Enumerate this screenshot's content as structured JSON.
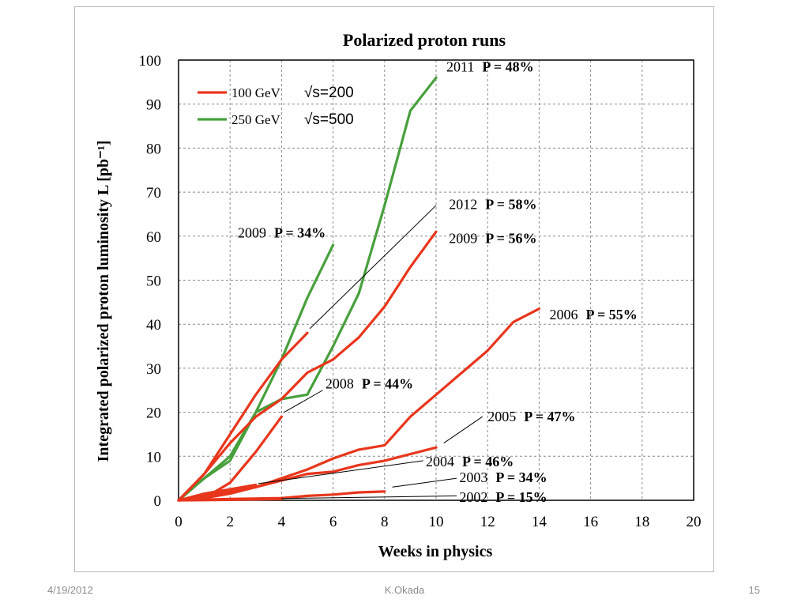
{
  "slide": {
    "footer_date": "4/19/2012",
    "footer_author": "K.Okada",
    "page_number": "15"
  },
  "colors": {
    "red_100gev": "#e8361c",
    "green_250gev": "#47a03c",
    "grid": "#8a8a8a",
    "axis": "#000000"
  },
  "chart_data": {
    "type": "line",
    "title": "Polarized proton runs",
    "xlabel": "Weeks in physics",
    "ylabel": "Integrated polarized proton luminosity L [pb⁻¹]",
    "xlim": [
      0,
      20
    ],
    "ylim": [
      0,
      100
    ],
    "xticks": [
      "0",
      "2",
      "4",
      "6",
      "8",
      "10",
      "12",
      "14",
      "16",
      "18",
      "20"
    ],
    "yticks": [
      "0",
      "10",
      "20",
      "30",
      "40",
      "50",
      "60",
      "70",
      "80",
      "90",
      "100"
    ],
    "grid": true,
    "legend_position": "top-left",
    "legend": [
      {
        "label": "100 GeV",
        "energy": "√s=200",
        "color": "#e8361c"
      },
      {
        "label": "250 GeV",
        "energy": "√s=500",
        "color": "#47a03c"
      }
    ],
    "series": [
      {
        "year": "2011",
        "pol": "P = 48%",
        "color": "#47a03c",
        "x": [
          0,
          1,
          2,
          3,
          4,
          5,
          6,
          7,
          8,
          9,
          10
        ],
        "y": [
          0,
          5,
          10,
          20,
          23,
          24,
          35,
          47,
          67,
          88.5,
          96
        ]
      },
      {
        "year": "2009",
        "pol": "P = 34%",
        "color": "#47a03c",
        "x": [
          0,
          1,
          2,
          3,
          4,
          5,
          6
        ],
        "y": [
          0,
          5,
          9,
          20,
          32,
          46,
          58
        ]
      },
      {
        "year": "2012",
        "pol": "P = 58%",
        "color": "#e8361c",
        "x": [
          0,
          1,
          2,
          3,
          4,
          5
        ],
        "y": [
          0,
          6,
          15,
          24,
          32,
          38
        ]
      },
      {
        "year": "2009",
        "pol": "P = 56%",
        "color": "#e8361c",
        "x": [
          0,
          1,
          2,
          3,
          4,
          5,
          6,
          7,
          8,
          9,
          10
        ],
        "y": [
          0,
          6,
          13,
          19,
          23,
          29,
          32,
          37,
          44,
          53,
          61
        ]
      },
      {
        "year": "2008",
        "pol": "P = 44%",
        "color": "#e8361c",
        "x": [
          0,
          1,
          2,
          3,
          4
        ],
        "y": [
          0,
          0.5,
          4,
          11,
          19
        ]
      },
      {
        "year": "2006",
        "pol": "P = 55%",
        "color": "#e8361c",
        "x": [
          0,
          2,
          3,
          4,
          5,
          6,
          7,
          7.5,
          8,
          9,
          10,
          11,
          12,
          13,
          14
        ],
        "y": [
          0,
          2,
          3,
          5,
          7,
          9.5,
          11.5,
          12,
          12.5,
          19,
          24,
          29,
          34,
          40.5,
          43.5
        ]
      },
      {
        "year": "2005",
        "pol": "P = 47%",
        "color": "#e8361c",
        "x": [
          0,
          1,
          2,
          3,
          4,
          5,
          6,
          7,
          8,
          9,
          10
        ],
        "y": [
          0,
          0.5,
          1.5,
          3,
          4.5,
          6,
          6.5,
          8,
          9,
          10.5,
          12
        ]
      },
      {
        "year": "2004",
        "pol": "P = 46%",
        "color": "#e8361c",
        "x": [
          0,
          1,
          2,
          3
        ],
        "y": [
          0,
          1.5,
          2.5,
          3.5
        ]
      },
      {
        "year": "2003",
        "pol": "P = 34%",
        "color": "#e8361c",
        "x": [
          0,
          2,
          4,
          5,
          6,
          7,
          8
        ],
        "y": [
          0,
          0.3,
          0.5,
          1,
          1.3,
          1.8,
          2
        ]
      },
      {
        "year": "2002",
        "pol": "P = 15%",
        "color": "#e8361c",
        "x": [
          0,
          2,
          4
        ],
        "y": [
          0,
          0.1,
          0.3
        ]
      }
    ]
  }
}
